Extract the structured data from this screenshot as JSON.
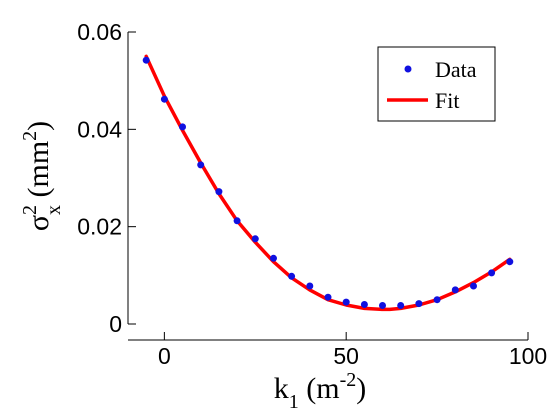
{
  "chart_data": {
    "type": "scatter",
    "title": "",
    "xlabel": {
      "base": "k",
      "sub": "1",
      "units_open": " (m",
      "units_sup": "-2",
      "units_close": ")"
    },
    "ylabel": {
      "base": "σ",
      "sup": "2",
      "sub": "x",
      "units_open": " (mm",
      "units_sup": "2",
      "units_close": ")"
    },
    "xlim": [
      -10,
      100
    ],
    "ylim": [
      0,
      0.06
    ],
    "x_ticks": [
      0,
      50,
      100
    ],
    "x_tick_labels": [
      "0",
      "50",
      "100"
    ],
    "y_ticks": [
      0,
      0.02,
      0.04,
      0.06
    ],
    "y_tick_labels": [
      "0",
      "0.02",
      "0.04",
      "0.06"
    ],
    "legend_position": "top-right",
    "grid": false,
    "series": [
      {
        "name": "Data",
        "kind": "points",
        "color": "#1010e0",
        "x": [
          -5,
          0,
          5,
          10,
          15,
          20,
          25,
          30,
          35,
          40,
          45,
          50,
          55,
          60,
          65,
          70,
          75,
          80,
          85,
          90,
          95
        ],
        "y": [
          0.0542,
          0.0462,
          0.0405,
          0.0327,
          0.0272,
          0.0212,
          0.0175,
          0.0135,
          0.0098,
          0.0078,
          0.0055,
          0.0045,
          0.004,
          0.0038,
          0.0038,
          0.0042,
          0.005,
          0.007,
          0.0078,
          0.0105,
          0.0128
        ]
      },
      {
        "name": "Fit",
        "kind": "line",
        "color": "#ff0000",
        "x": [
          -5,
          0,
          5,
          10,
          15,
          20,
          25,
          30,
          35,
          40,
          45,
          50,
          55,
          60,
          62,
          65,
          70,
          75,
          80,
          85,
          90,
          95
        ],
        "y": [
          0.055,
          0.0468,
          0.0398,
          0.0331,
          0.0268,
          0.0212,
          0.0168,
          0.0128,
          0.0095,
          0.007,
          0.005,
          0.0039,
          0.0032,
          0.003,
          0.003,
          0.0032,
          0.0039,
          0.005,
          0.0066,
          0.0085,
          0.0107,
          0.0133
        ]
      }
    ]
  }
}
